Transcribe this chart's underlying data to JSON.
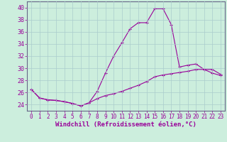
{
  "xlabel": "Windchill (Refroidissement éolien,°C)",
  "background_color": "#cceedd",
  "line_color": "#990099",
  "xlim": [
    -0.5,
    23.5
  ],
  "ylim": [
    23.0,
    41.0
  ],
  "yticks": [
    24,
    26,
    28,
    30,
    32,
    34,
    36,
    38,
    40
  ],
  "xticks": [
    0,
    1,
    2,
    3,
    4,
    5,
    6,
    7,
    8,
    9,
    10,
    11,
    12,
    13,
    14,
    15,
    16,
    17,
    18,
    19,
    20,
    21,
    22,
    23
  ],
  "curve1_x": [
    0,
    1,
    2,
    3,
    4,
    5,
    6,
    7,
    8,
    9,
    10,
    11,
    12,
    13,
    14,
    15,
    16,
    17,
    18,
    19,
    20,
    21,
    22,
    23
  ],
  "curve1_y": [
    26.5,
    25.1,
    24.8,
    24.7,
    24.5,
    24.2,
    23.8,
    24.3,
    26.2,
    29.2,
    32.0,
    34.2,
    36.5,
    37.5,
    37.5,
    39.8,
    39.8,
    37.2,
    30.2,
    30.5,
    30.7,
    29.8,
    29.2,
    28.8
  ],
  "curve2_x": [
    0,
    1,
    2,
    3,
    4,
    5,
    6,
    7,
    8,
    9,
    10,
    11,
    12,
    13,
    14,
    15,
    16,
    17,
    18,
    19,
    20,
    21,
    22,
    23
  ],
  "curve2_y": [
    26.5,
    25.1,
    24.8,
    24.7,
    24.5,
    24.2,
    23.8,
    24.3,
    25.0,
    25.5,
    25.8,
    26.2,
    26.7,
    27.2,
    27.8,
    28.6,
    28.9,
    29.1,
    29.3,
    29.5,
    29.8,
    29.8,
    29.8,
    29.0
  ],
  "grid_color": "#aacccc",
  "tick_fontsize": 5.5,
  "xlabel_fontsize": 6.5
}
